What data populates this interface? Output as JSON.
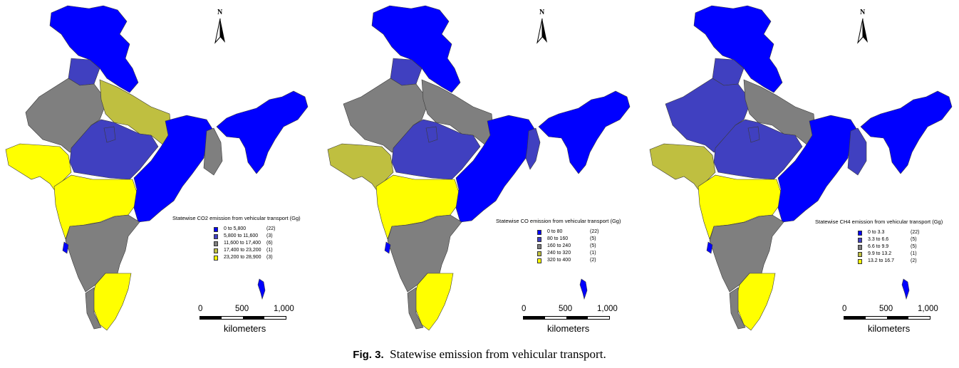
{
  "colors": {
    "c1": "#0000ff",
    "c2": "#4040c0",
    "c3": "#7f7f7f",
    "c4": "#bfbf40",
    "c5": "#ffff00"
  },
  "panels": [
    {
      "legend_title": "Statewise CO2 emission from vehicular transport (Gg)",
      "classes": [
        {
          "range": "0 to  5,800",
          "count": "(22)"
        },
        {
          "range": "5,800 to 11,600",
          "count": "(3)"
        },
        {
          "range": "11,600 to 17,400",
          "count": "(6)"
        },
        {
          "range": "17,400 to 23,200",
          "count": "(1)"
        },
        {
          "range": "23,200 to 28,900",
          "count": "(3)"
        }
      ]
    },
    {
      "legend_title": "Statewise CO emission from vehicular transport (Gg)",
      "classes": [
        {
          "range": "0 to  80",
          "count": "(22)"
        },
        {
          "range": "80 to 160",
          "count": "(5)"
        },
        {
          "range": "160 to 240",
          "count": "(5)"
        },
        {
          "range": "240 to 320",
          "count": "(1)"
        },
        {
          "range": "320 to 400",
          "count": "(2)"
        }
      ]
    },
    {
      "legend_title": "Statewise CH4 emission from vehicular transport (Gg)",
      "classes": [
        {
          "range": "0    to  3.3",
          "count": "(22)"
        },
        {
          "range": "3.3 to  6.6",
          "count": "(5)"
        },
        {
          "range": "6.6 to  9.9",
          "count": "(5)"
        },
        {
          "range": "9.9 to 13.2",
          "count": "(1)"
        },
        {
          "range": "13.2 to 16.7",
          "count": "(2)"
        }
      ]
    }
  ],
  "north_label": "N",
  "scale": {
    "ticks": [
      "0",
      "500",
      "1,000"
    ],
    "unit": "kilometers"
  },
  "caption": {
    "label": "Fig. 3.",
    "text": "Statewise emission from vehicular transport."
  }
}
